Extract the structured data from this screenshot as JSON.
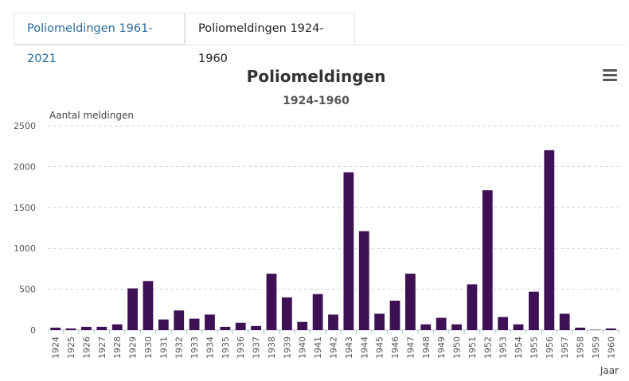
{
  "tabs": [
    {
      "label": "Poliomeldingen 1961-2021",
      "active": false
    },
    {
      "label": "Poliomeldingen 1924-1960",
      "active": true
    }
  ],
  "menu_icon": "hamburger-menu-icon",
  "chart_data": {
    "type": "bar",
    "title": "Poliomeldingen",
    "subtitle": "1924-1960",
    "ylabel": "Aantal meldingen",
    "xlabel": "Jaar",
    "ylim": [
      0,
      2500
    ],
    "yticks": [
      0,
      500,
      1000,
      1500,
      2000,
      2500
    ],
    "grid": true,
    "bar_color": "#3d1154",
    "categories": [
      "1924",
      "1925",
      "1926",
      "1927",
      "1928",
      "1929",
      "1930",
      "1931",
      "1932",
      "1933",
      "1934",
      "1935",
      "1936",
      "1937",
      "1938",
      "1939",
      "1940",
      "1941",
      "1942",
      "1943",
      "1944",
      "1945",
      "1946",
      "1947",
      "1948",
      "1949",
      "1950",
      "1951",
      "1952",
      "1953",
      "1954",
      "1955",
      "1956",
      "1957",
      "1958",
      "1959",
      "1960"
    ],
    "values": [
      30,
      20,
      40,
      40,
      70,
      510,
      600,
      130,
      240,
      140,
      190,
      40,
      90,
      50,
      690,
      400,
      100,
      440,
      190,
      1930,
      1210,
      200,
      360,
      690,
      70,
      150,
      70,
      560,
      1710,
      160,
      70,
      470,
      2200,
      200,
      30,
      5,
      20
    ]
  }
}
